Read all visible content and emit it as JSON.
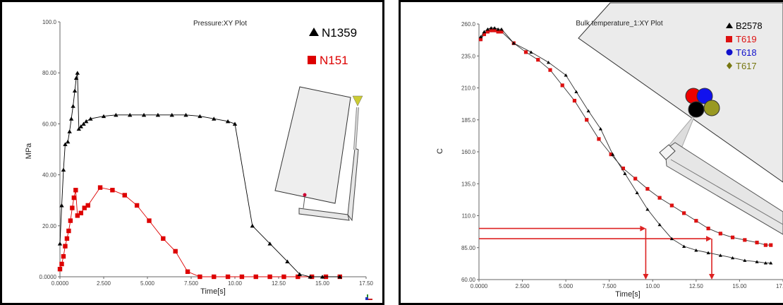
{
  "chart_data": [
    {
      "type": "line",
      "title": "Pressure:XY Plot",
      "xlabel": "Time[s]",
      "ylabel": "MPa",
      "xlim": [
        0,
        17.5
      ],
      "ylim": [
        0,
        100
      ],
      "x_ticks": [
        "0.0000",
        "2.500",
        "5.000",
        "7.500",
        "10.00",
        "12.50",
        "15.00",
        "17.50"
      ],
      "y_ticks": [
        "0.0000",
        "20.00",
        "40.00",
        "60.00",
        "80.00",
        "100.0"
      ],
      "legend": "top-right",
      "series": [
        {
          "name": "N1359",
          "color": "#000000",
          "marker": "triangle",
          "points": [
            [
              0.0,
              13
            ],
            [
              0.1,
              28
            ],
            [
              0.2,
              42
            ],
            [
              0.3,
              52
            ],
            [
              0.45,
              53
            ],
            [
              0.55,
              57
            ],
            [
              0.65,
              62
            ],
            [
              0.75,
              67
            ],
            [
              0.85,
              73
            ],
            [
              0.93,
              78
            ],
            [
              1.0,
              80
            ],
            [
              1.08,
              58
            ],
            [
              1.2,
              59
            ],
            [
              1.35,
              60
            ],
            [
              1.5,
              61
            ],
            [
              1.75,
              62
            ],
            [
              2.5,
              63
            ],
            [
              3.2,
              63.5
            ],
            [
              4.0,
              63.5
            ],
            [
              4.8,
              63.5
            ],
            [
              5.6,
              63.5
            ],
            [
              6.4,
              63.5
            ],
            [
              7.2,
              63.5
            ],
            [
              8.0,
              63
            ],
            [
              8.8,
              62
            ],
            [
              9.6,
              61
            ],
            [
              10.0,
              60
            ],
            [
              11.0,
              20
            ],
            [
              12.0,
              13
            ],
            [
              13.0,
              6
            ],
            [
              13.7,
              1
            ],
            [
              14.3,
              0
            ],
            [
              15.0,
              0
            ],
            [
              16.0,
              0
            ]
          ]
        },
        {
          "name": "N151",
          "color": "#dd0000",
          "marker": "square",
          "points": [
            [
              0.0,
              3
            ],
            [
              0.1,
              5
            ],
            [
              0.2,
              8
            ],
            [
              0.3,
              12
            ],
            [
              0.4,
              15
            ],
            [
              0.5,
              18
            ],
            [
              0.6,
              22
            ],
            [
              0.7,
              27
            ],
            [
              0.8,
              31
            ],
            [
              0.9,
              34
            ],
            [
              1.0,
              24
            ],
            [
              1.2,
              25
            ],
            [
              1.4,
              27
            ],
            [
              1.6,
              28
            ],
            [
              2.3,
              35
            ],
            [
              3.0,
              34
            ],
            [
              3.7,
              32
            ],
            [
              4.4,
              28
            ],
            [
              5.1,
              22
            ],
            [
              5.9,
              15
            ],
            [
              6.6,
              10
            ],
            [
              7.3,
              2
            ],
            [
              8.0,
              0
            ],
            [
              8.8,
              0
            ],
            [
              9.6,
              0
            ],
            [
              10.4,
              0
            ],
            [
              11.2,
              0
            ],
            [
              12.0,
              0
            ],
            [
              12.8,
              0
            ],
            [
              13.6,
              0
            ],
            [
              14.4,
              0
            ],
            [
              15.2,
              0
            ],
            [
              16.0,
              0
            ]
          ]
        }
      ]
    },
    {
      "type": "line",
      "title": "Bulk temperature_1:XY Plot",
      "xlabel": "Time[s]",
      "ylabel": "C",
      "xlim": [
        0,
        17.5
      ],
      "ylim": [
        60,
        260
      ],
      "x_ticks": [
        "0.0000",
        "2.500",
        "5.000",
        "7.500",
        "10.00",
        "12.50",
        "15.00",
        "17.50"
      ],
      "y_ticks": [
        "60.00",
        "85.00",
        "110.0",
        "135.0",
        "160.0",
        "185.0",
        "210.0",
        "235.0",
        "260.0"
      ],
      "legend": "top-right",
      "reference_arrows": [
        {
          "y": 100,
          "x_end": 9.6,
          "color": "#dd2222"
        },
        {
          "y": 92,
          "x_end": 13.4,
          "color": "#dd2222"
        }
      ],
      "series": [
        {
          "name": "B2578",
          "color": "#000000",
          "marker": "triangle",
          "points": [
            [
              0.1,
              250
            ],
            [
              0.3,
              254
            ],
            [
              0.5,
              256
            ],
            [
              0.7,
              257
            ],
            [
              0.9,
              257
            ],
            [
              1.1,
              256
            ],
            [
              1.3,
              256
            ],
            [
              2.0,
              245
            ],
            [
              3.0,
              238
            ],
            [
              4.0,
              230
            ],
            [
              5.0,
              220
            ],
            [
              5.6,
              207
            ],
            [
              6.3,
              192
            ],
            [
              7.0,
              178
            ],
            [
              7.7,
              158
            ],
            [
              8.4,
              143
            ],
            [
              9.1,
              128
            ],
            [
              9.7,
              115
            ],
            [
              10.4,
              103
            ],
            [
              11.1,
              92
            ],
            [
              11.8,
              86
            ],
            [
              12.5,
              83
            ],
            [
              13.2,
              81
            ],
            [
              13.9,
              79
            ],
            [
              14.6,
              77
            ],
            [
              15.3,
              75
            ],
            [
              16.0,
              74
            ],
            [
              16.5,
              73
            ],
            [
              16.8,
              73
            ]
          ]
        },
        {
          "name": "T619",
          "color": "#dd1111",
          "marker": "square",
          "points": [
            [
              0.1,
              248
            ],
            [
              0.3,
              252
            ],
            [
              0.5,
              254
            ],
            [
              0.7,
              255
            ],
            [
              0.9,
              255
            ],
            [
              1.1,
              254
            ],
            [
              1.3,
              254
            ],
            [
              2.0,
              245
            ],
            [
              2.7,
              238
            ],
            [
              3.4,
              232
            ],
            [
              4.1,
              224
            ],
            [
              4.8,
              212
            ],
            [
              5.5,
              200
            ],
            [
              6.2,
              185
            ],
            [
              6.9,
              170
            ],
            [
              7.6,
              158
            ],
            [
              8.3,
              147
            ],
            [
              9.0,
              139
            ],
            [
              9.7,
              131
            ],
            [
              10.4,
              124
            ],
            [
              11.1,
              118
            ],
            [
              11.8,
              112
            ],
            [
              12.5,
              106
            ],
            [
              13.2,
              100
            ],
            [
              13.9,
              96
            ],
            [
              14.6,
              93
            ],
            [
              15.3,
              91
            ],
            [
              16.0,
              89
            ],
            [
              16.5,
              87
            ],
            [
              16.8,
              87
            ]
          ]
        },
        {
          "name": "T618",
          "color": "#1111cc",
          "marker": "circle",
          "points": [
            [
              0.1,
              248
            ],
            [
              0.3,
              252
            ],
            [
              0.5,
              254
            ],
            [
              0.7,
              255
            ],
            [
              0.9,
              255
            ],
            [
              1.1,
              254
            ],
            [
              1.3,
              254
            ]
          ]
        },
        {
          "name": "T617",
          "color": "#777711",
          "marker": "diamond",
          "points": [
            [
              0.1,
              249
            ],
            [
              0.3,
              253
            ],
            [
              0.5,
              255
            ],
            [
              0.7,
              256
            ],
            [
              0.9,
              256
            ],
            [
              1.1,
              255
            ],
            [
              1.3,
              255
            ]
          ]
        }
      ]
    }
  ]
}
